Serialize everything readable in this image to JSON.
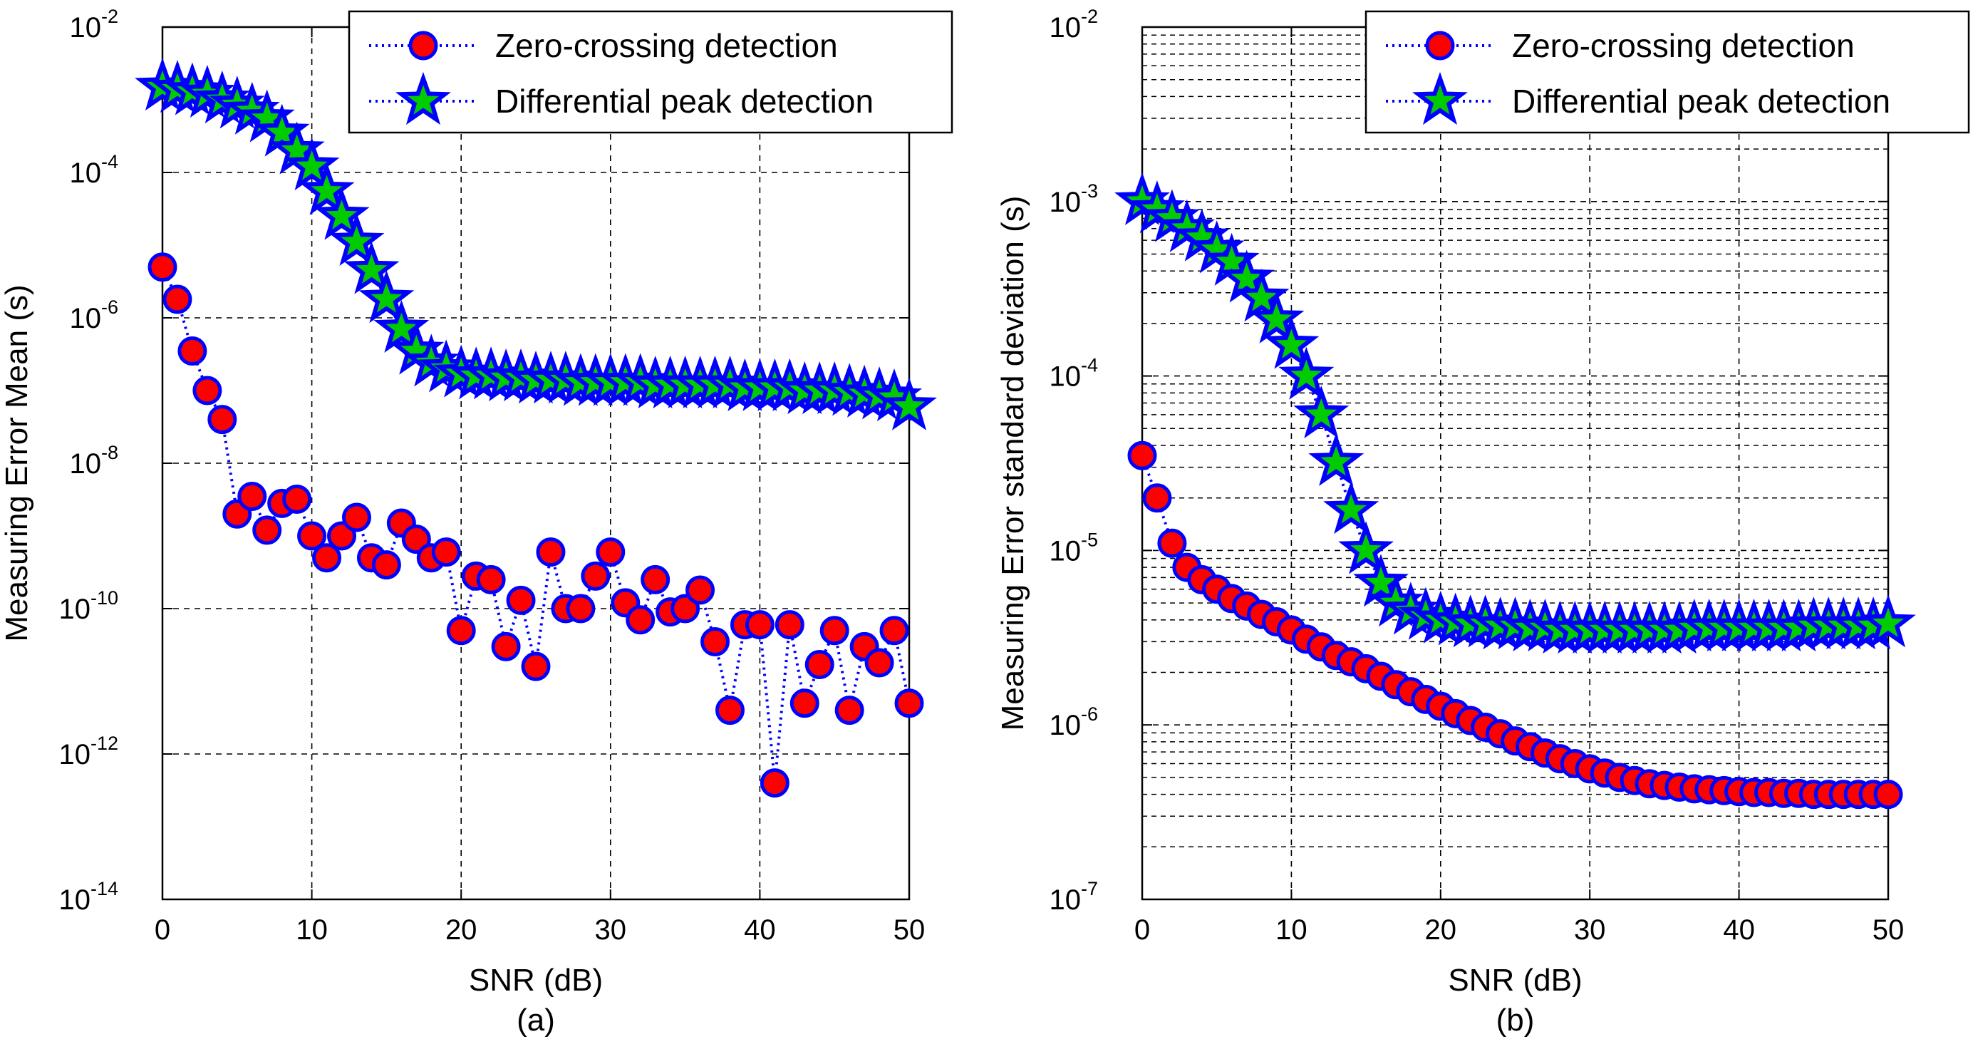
{
  "chart_data": [
    {
      "type": "line",
      "panel_label": "(a)",
      "xlabel": "SNR (dB)",
      "ylabel": "Measuring Error Mean (s)",
      "xlim": [
        0,
        50
      ],
      "ylim": [
        1e-14,
        0.01
      ],
      "yscale": "log",
      "grid": true,
      "minor_grid": false,
      "legend_position": "top-right",
      "xticks": [
        0,
        10,
        20,
        30,
        40,
        50
      ],
      "xtick_labels": [
        "0",
        "10",
        "20",
        "30",
        "40",
        "50"
      ],
      "yticks": [
        1e-14,
        1e-12,
        1e-10,
        1e-08,
        1e-06,
        0.0001,
        0.01
      ],
      "ytick_bases": [
        "10",
        "10",
        "10",
        "10",
        "10",
        "10",
        "10"
      ],
      "ytick_exps": [
        "-14",
        "-12",
        "-10",
        "-8",
        "-6",
        "-4",
        "-2"
      ],
      "series": [
        {
          "name": "Zero-crossing detection",
          "marker": "circle",
          "line_color": "#0000ff",
          "marker_fill": "#ff0000",
          "marker_edge": "#0000ff",
          "x": [
            0,
            1,
            2,
            3,
            4,
            5,
            6,
            7,
            8,
            9,
            10,
            11,
            12,
            13,
            14,
            15,
            16,
            17,
            18,
            19,
            20,
            21,
            22,
            23,
            24,
            25,
            26,
            27,
            28,
            29,
            30,
            31,
            32,
            33,
            34,
            35,
            36,
            37,
            38,
            39,
            40,
            41,
            42,
            43,
            44,
            45,
            46,
            47,
            48,
            49,
            50
          ],
          "y": [
            5e-06,
            1.8e-06,
            3.5e-07,
            1e-07,
            4e-08,
            2e-09,
            3.5e-09,
            1.2e-09,
            2.8e-09,
            3.2e-09,
            1e-09,
            5e-10,
            1e-09,
            1.8e-09,
            5e-10,
            4e-10,
            1.5e-09,
            9e-10,
            5e-10,
            6e-10,
            5e-11,
            2.8e-10,
            2.5e-10,
            3e-11,
            1.3e-10,
            1.6e-11,
            6e-10,
            1e-10,
            1e-10,
            2.8e-10,
            6e-10,
            1.2e-10,
            7e-11,
            2.5e-10,
            9e-11,
            1e-10,
            1.8e-10,
            3.5e-11,
            4e-12,
            6e-11,
            6e-11,
            4e-13,
            6e-11,
            5e-12,
            1.7e-11,
            5e-11,
            4e-12,
            3e-11,
            1.8e-11,
            5e-11,
            5e-12
          ]
        },
        {
          "name": "Differential peak detection",
          "marker": "star",
          "line_color": "#0000ff",
          "marker_fill": "#00cc00",
          "marker_edge": "#0000ff",
          "x": [
            0,
            1,
            2,
            3,
            4,
            5,
            6,
            7,
            8,
            9,
            10,
            11,
            12,
            13,
            14,
            15,
            16,
            17,
            18,
            19,
            20,
            21,
            22,
            23,
            24,
            25,
            26,
            27,
            28,
            29,
            30,
            31,
            32,
            33,
            34,
            35,
            36,
            37,
            38,
            39,
            40,
            41,
            42,
            43,
            44,
            45,
            46,
            47,
            48,
            49,
            50
          ],
          "y": [
            0.0015,
            0.0014,
            0.0013,
            0.0012,
            0.001,
            0.00085,
            0.0007,
            0.00055,
            0.00035,
            0.0002,
            0.00012,
            5.5e-05,
            2.5e-05,
            1.1e-05,
            4.5e-06,
            1.8e-06,
            7e-07,
            3.5e-07,
            2.4e-07,
            2e-07,
            1.7e-07,
            1.6e-07,
            1.6e-07,
            1.5e-07,
            1.5e-07,
            1.4e-07,
            1.4e-07,
            1.4e-07,
            1.3e-07,
            1.3e-07,
            1.3e-07,
            1.3e-07,
            1.3e-07,
            1.2e-07,
            1.2e-07,
            1.2e-07,
            1.2e-07,
            1.2e-07,
            1.2e-07,
            1.1e-07,
            1.1e-07,
            1.1e-07,
            1.1e-07,
            1e-07,
            1e-07,
            1e-07,
            9.5e-08,
            9e-08,
            8.5e-08,
            8e-08,
            6e-08
          ]
        }
      ]
    },
    {
      "type": "line",
      "panel_label": "(b)",
      "xlabel": "SNR (dB)",
      "ylabel": "Measuring Error standard deviation (s)",
      "xlim": [
        0,
        50
      ],
      "ylim": [
        1e-07,
        0.01
      ],
      "yscale": "log",
      "grid": true,
      "minor_grid": true,
      "legend_position": "top-right",
      "xticks": [
        0,
        10,
        20,
        30,
        40,
        50
      ],
      "xtick_labels": [
        "0",
        "10",
        "20",
        "30",
        "40",
        "50"
      ],
      "yticks": [
        1e-07,
        1e-06,
        1e-05,
        0.0001,
        0.001,
        0.01
      ],
      "ytick_bases": [
        "10",
        "10",
        "10",
        "10",
        "10",
        "10"
      ],
      "ytick_exps": [
        "-7",
        "-6",
        "-5",
        "-4",
        "-3",
        "-2"
      ],
      "series": [
        {
          "name": "Zero-crossing detection",
          "marker": "circle",
          "line_color": "#0000ff",
          "marker_fill": "#ff0000",
          "marker_edge": "#0000ff",
          "x": [
            0,
            1,
            2,
            3,
            4,
            5,
            6,
            7,
            8,
            9,
            10,
            11,
            12,
            13,
            14,
            15,
            16,
            17,
            18,
            19,
            20,
            21,
            22,
            23,
            24,
            25,
            26,
            27,
            28,
            29,
            30,
            31,
            32,
            33,
            34,
            35,
            36,
            37,
            38,
            39,
            40,
            41,
            42,
            43,
            44,
            45,
            46,
            47,
            48,
            49,
            50
          ],
          "y": [
            3.5e-05,
            2e-05,
            1.1e-05,
            8e-06,
            6.8e-06,
            6e-06,
            5.3e-06,
            4.8e-06,
            4.3e-06,
            3.9e-06,
            3.5e-06,
            3.1e-06,
            2.8e-06,
            2.5e-06,
            2.3e-06,
            2.1e-06,
            1.9e-06,
            1.7e-06,
            1.55e-06,
            1.4e-06,
            1.28e-06,
            1.16e-06,
            1.06e-06,
            9.7e-07,
            8.9e-07,
            8.1e-07,
            7.5e-07,
            6.9e-07,
            6.4e-07,
            6e-07,
            5.6e-07,
            5.3e-07,
            5e-07,
            4.8e-07,
            4.6e-07,
            4.5e-07,
            4.4e-07,
            4.3e-07,
            4.25e-07,
            4.2e-07,
            4.15e-07,
            4.1e-07,
            4.1e-07,
            4.05e-07,
            4.05e-07,
            4e-07,
            4e-07,
            4e-07,
            4e-07,
            4e-07,
            4e-07
          ]
        },
        {
          "name": "Differential peak detection",
          "marker": "star",
          "line_color": "#0000ff",
          "marker_fill": "#00cc00",
          "marker_edge": "#0000ff",
          "x": [
            0,
            1,
            2,
            3,
            4,
            5,
            6,
            7,
            8,
            9,
            10,
            11,
            12,
            13,
            14,
            15,
            16,
            17,
            18,
            19,
            20,
            21,
            22,
            23,
            24,
            25,
            26,
            27,
            28,
            29,
            30,
            31,
            32,
            33,
            34,
            35,
            36,
            37,
            38,
            39,
            40,
            41,
            42,
            43,
            44,
            45,
            46,
            47,
            48,
            49,
            50
          ],
          "y": [
            0.001,
            0.0009,
            0.0008,
            0.0007,
            0.00062,
            0.00053,
            0.00045,
            0.00036,
            0.00028,
            0.00021,
            0.00015,
            0.0001,
            6e-05,
            3.2e-05,
            1.7e-05,
            1e-05,
            6.5e-06,
            5e-06,
            4.5e-06,
            4.2e-06,
            4e-06,
            3.9e-06,
            3.8e-06,
            3.8e-06,
            3.7e-06,
            3.7e-06,
            3.6e-06,
            3.6e-06,
            3.5e-06,
            3.5e-06,
            3.5e-06,
            3.5e-06,
            3.5e-06,
            3.5e-06,
            3.5e-06,
            3.5e-06,
            3.5e-06,
            3.6e-06,
            3.6e-06,
            3.6e-06,
            3.6e-06,
            3.6e-06,
            3.6e-06,
            3.6e-06,
            3.6e-06,
            3.7e-06,
            3.7e-06,
            3.7e-06,
            3.7e-06,
            3.7e-06,
            3.8e-06
          ]
        }
      ]
    }
  ]
}
